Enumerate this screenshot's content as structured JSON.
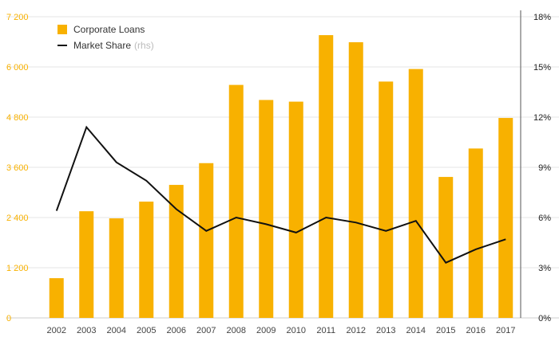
{
  "chart_data": {
    "type": "bar",
    "title": "",
    "xlabel": "",
    "ylabel": "",
    "categories": [
      "2002",
      "2003",
      "2004",
      "2005",
      "2006",
      "2007",
      "2008",
      "2009",
      "2010",
      "2011",
      "2012",
      "2013",
      "2014",
      "2015",
      "2016",
      "2017"
    ],
    "series": [
      {
        "name": "Corporate Loans",
        "type": "bar",
        "axis": "left",
        "color": "#f8b100",
        "values": [
          950,
          2550,
          2380,
          2780,
          3180,
          3700,
          5570,
          5210,
          5170,
          6760,
          6590,
          5650,
          5950,
          3370,
          4050,
          4780
        ]
      },
      {
        "name": "Market Share",
        "name_suffix": "(rhs)",
        "type": "line",
        "axis": "right",
        "color": "#111111",
        "values": [
          6.4,
          11.4,
          9.3,
          8.2,
          6.5,
          5.2,
          6.0,
          5.6,
          5.1,
          6.0,
          5.7,
          5.2,
          5.8,
          3.3,
          4.1,
          4.7
        ]
      }
    ],
    "y_left": {
      "ylim": [
        0,
        7200
      ],
      "ticks": [
        0,
        1200,
        2400,
        3600,
        4800,
        6000,
        7200
      ],
      "tick_labels": [
        "0",
        "1 200",
        "2 400",
        "3 600",
        "4 800",
        "6 000",
        "7 200"
      ],
      "color": "#f8b100"
    },
    "y_right": {
      "ylim": [
        0,
        18
      ],
      "ticks": [
        0,
        3,
        6,
        9,
        12,
        15,
        18
      ],
      "tick_labels": [
        "0%",
        "3%",
        "6%",
        "9%",
        "12%",
        "15%",
        "18%"
      ]
    },
    "grid": true,
    "legend_position": "top-left"
  }
}
